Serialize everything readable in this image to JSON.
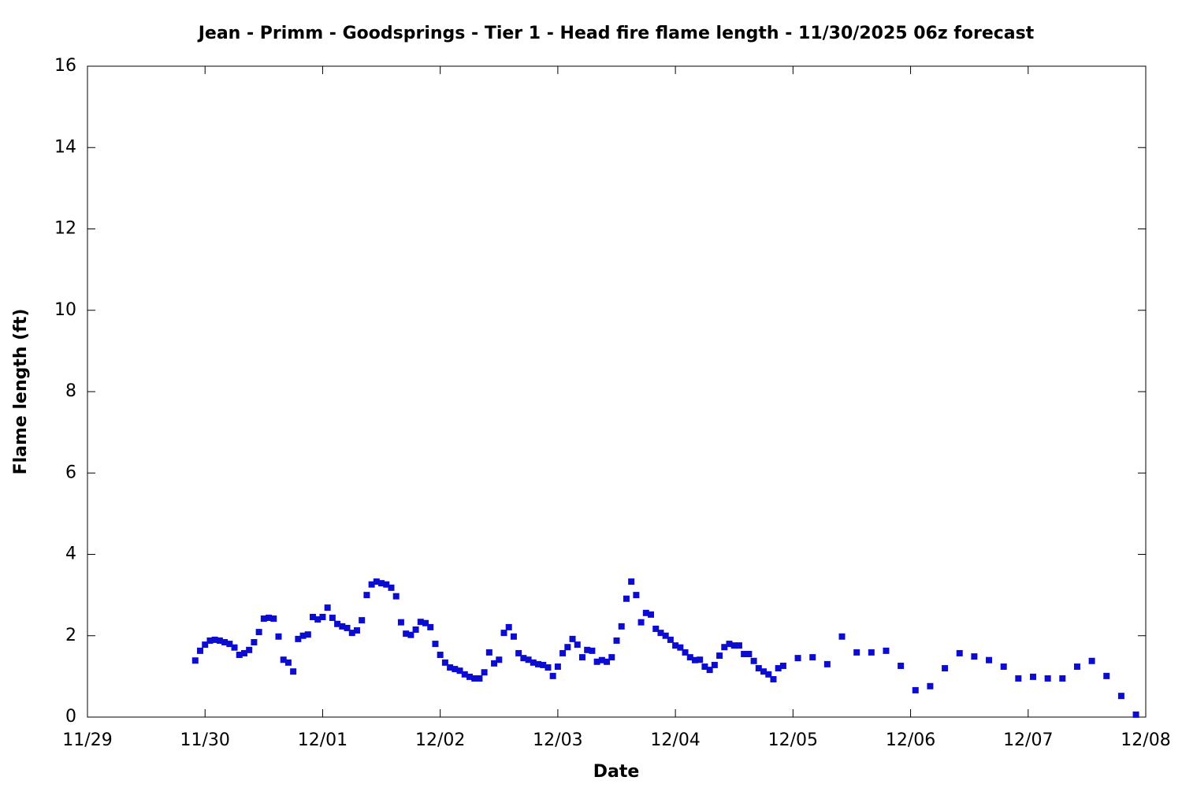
{
  "chart_data": {
    "type": "scatter",
    "title": "Jean - Primm - Goodsprings - Tier 1 - Head fire flame length - 11/30/2025 06z forecast",
    "x_label": "Date",
    "y_label": "Flame length (ft)",
    "color": "#0c0cd0",
    "xlim": [
      0,
      216
    ],
    "xticks": [
      {
        "value": 0,
        "label": "11/29"
      },
      {
        "value": 24,
        "label": "11/30"
      },
      {
        "value": 48,
        "label": "12/01"
      },
      {
        "value": 72,
        "label": "12/02"
      },
      {
        "value": 96,
        "label": "12/03"
      },
      {
        "value": 120,
        "label": "12/04"
      },
      {
        "value": 144,
        "label": "12/05"
      },
      {
        "value": 168,
        "label": "12/06"
      },
      {
        "value": 192,
        "label": "12/07"
      },
      {
        "value": 216,
        "label": "12/08"
      }
    ],
    "ylim": [
      0,
      16
    ],
    "yticks": [
      0,
      2,
      4,
      6,
      8,
      10,
      12,
      14,
      16
    ],
    "x": [
      22,
      23,
      24,
      25,
      26,
      27,
      28,
      29,
      30,
      31,
      32,
      33,
      34,
      35,
      36,
      37,
      38,
      39,
      40,
      41,
      42,
      43,
      44,
      45,
      46,
      47,
      48,
      49,
      50,
      51,
      52,
      53,
      54,
      55,
      56,
      57,
      58,
      59,
      60,
      61,
      62,
      63,
      64,
      65,
      66,
      67,
      68,
      69,
      70,
      71,
      72,
      73,
      74,
      75,
      76,
      77,
      78,
      79,
      80,
      81,
      82,
      83,
      84,
      85,
      86,
      87,
      88,
      89,
      90,
      91,
      92,
      93,
      94,
      95,
      96,
      97,
      98,
      99,
      100,
      101,
      102,
      103,
      104,
      105,
      106,
      107,
      108,
      109,
      110,
      111,
      112,
      113,
      114,
      115,
      116,
      117,
      118,
      119,
      120,
      121,
      122,
      123,
      124,
      125,
      126,
      127,
      128,
      129,
      130,
      131,
      132,
      133,
      134,
      135,
      136,
      137,
      138,
      139,
      140,
      141,
      142,
      145,
      148,
      151,
      154,
      157,
      160,
      163,
      166,
      169,
      172,
      175,
      178,
      181,
      184,
      187,
      190,
      193,
      196,
      199,
      202,
      205,
      208,
      211,
      214
    ],
    "values": [
      1.39,
      1.63,
      1.78,
      1.88,
      1.9,
      1.88,
      1.84,
      1.8,
      1.71,
      1.53,
      1.57,
      1.65,
      1.84,
      2.09,
      2.42,
      2.44,
      2.42,
      1.98,
      1.41,
      1.34,
      1.12,
      1.92,
      2.0,
      2.03,
      2.46,
      2.4,
      2.46,
      2.69,
      2.44,
      2.29,
      2.23,
      2.19,
      2.07,
      2.13,
      2.38,
      3.0,
      3.26,
      3.33,
      3.29,
      3.26,
      3.18,
      2.97,
      2.33,
      2.05,
      2.02,
      2.15,
      2.34,
      2.31,
      2.21,
      1.8,
      1.53,
      1.34,
      1.22,
      1.18,
      1.14,
      1.05,
      0.99,
      0.95,
      0.95,
      1.1,
      1.59,
      1.32,
      1.41,
      2.07,
      2.21,
      1.98,
      1.57,
      1.45,
      1.41,
      1.34,
      1.3,
      1.28,
      1.22,
      1.01,
      1.24,
      1.57,
      1.72,
      1.92,
      1.78,
      1.47,
      1.65,
      1.63,
      1.36,
      1.4,
      1.36,
      1.47,
      1.88,
      2.23,
      2.91,
      3.33,
      3.0,
      2.33,
      2.56,
      2.52,
      2.17,
      2.07,
      2.0,
      1.9,
      1.76,
      1.71,
      1.59,
      1.47,
      1.4,
      1.41,
      1.24,
      1.16,
      1.28,
      1.51,
      1.72,
      1.8,
      1.76,
      1.76,
      1.55,
      1.55,
      1.38,
      1.2,
      1.12,
      1.05,
      0.93,
      1.2,
      1.26,
      1.45,
      1.47,
      1.3,
      1.98,
      1.59,
      1.59,
      1.63,
      1.26,
      0.66,
      0.76,
      1.2,
      1.57,
      1.49,
      1.4,
      1.24,
      0.95,
      0.99,
      0.95,
      0.95,
      1.24,
      1.38,
      1.01,
      0.52,
      0.06
    ]
  }
}
